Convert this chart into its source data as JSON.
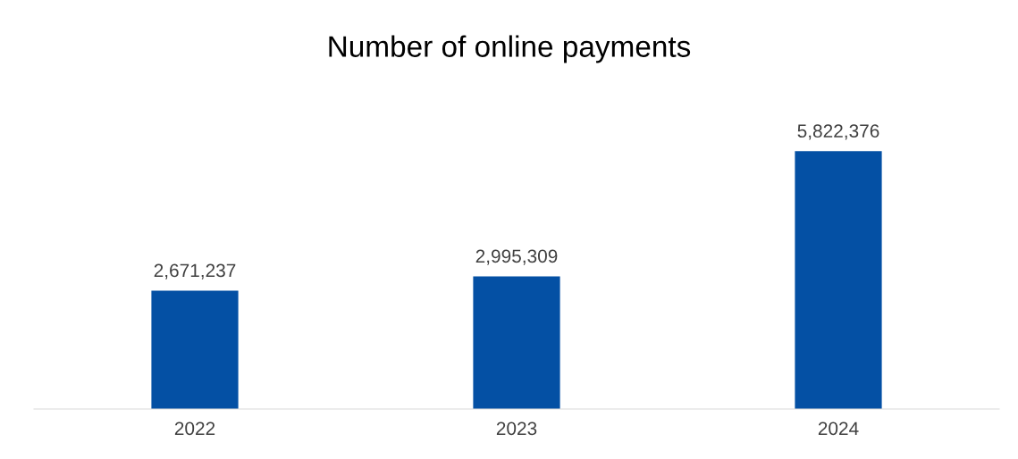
{
  "chart_data": {
    "type": "bar",
    "title": "Number of online payments",
    "categories": [
      "2022",
      "2023",
      "2024"
    ],
    "values": [
      2671237,
      2995309,
      5822376
    ],
    "value_labels": [
      "2,671,237",
      "2,995,309",
      "5,822,376"
    ],
    "color": "#0450a4",
    "grid": false,
    "legend": false
  }
}
